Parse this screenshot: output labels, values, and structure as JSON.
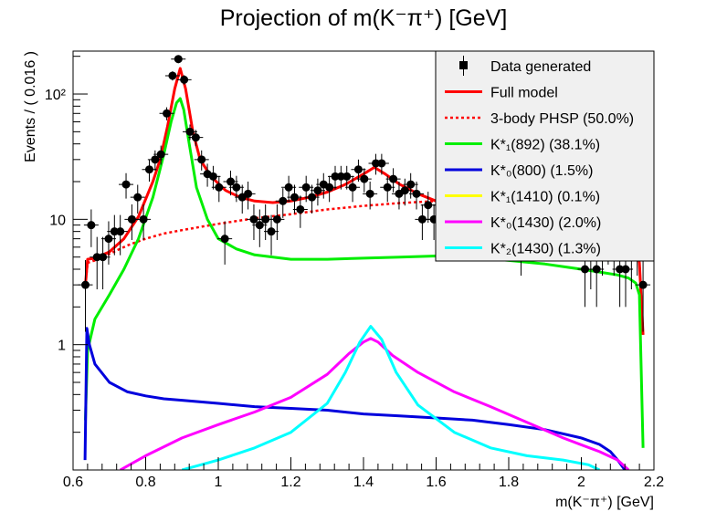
{
  "chart_data": {
    "type": "line",
    "title": "Projection of m(K⁻π⁺) [GeV]",
    "xlabel": "m(K⁻π⁺) [GeV]",
    "ylabel": "Events / ( 0.016 )",
    "xlim": [
      0.6,
      2.2
    ],
    "ylim": [
      0.1,
      220
    ],
    "yscale": "log",
    "grid": false,
    "legend_position": "top-right",
    "x_ticks": [
      "0.6",
      "0.8",
      "1",
      "1.2",
      "1.4",
      "1.6",
      "1.8",
      "2",
      "2.2"
    ],
    "y_ticks": [
      {
        "value": 1,
        "label": "1"
      },
      {
        "value": 10,
        "label": "10"
      },
      {
        "value": 100,
        "label": "10²"
      }
    ],
    "data_points": {
      "name": "Data generated",
      "x": [
        0.634,
        0.65,
        0.666,
        0.682,
        0.698,
        0.714,
        0.73,
        0.746,
        0.762,
        0.778,
        0.794,
        0.81,
        0.826,
        0.842,
        0.858,
        0.874,
        0.89,
        0.906,
        0.922,
        0.938,
        0.954,
        0.97,
        0.986,
        1.002,
        1.018,
        1.034,
        1.05,
        1.066,
        1.082,
        1.098,
        1.114,
        1.13,
        1.146,
        1.162,
        1.178,
        1.194,
        1.21,
        1.226,
        1.242,
        1.258,
        1.274,
        1.29,
        1.306,
        1.322,
        1.338,
        1.354,
        1.37,
        1.386,
        1.402,
        1.418,
        1.434,
        1.45,
        1.466,
        1.482,
        1.498,
        1.514,
        1.53,
        1.546,
        1.562,
        1.578,
        1.594,
        1.61,
        1.626,
        1.642,
        1.658,
        1.674,
        1.69,
        1.706,
        1.722,
        1.738,
        1.754,
        1.77,
        1.786,
        1.802,
        1.818,
        1.834,
        1.85,
        1.866,
        1.882,
        1.898,
        1.914,
        1.93,
        1.946,
        1.962,
        1.978,
        1.994,
        2.01,
        2.026,
        2.042,
        2.058,
        2.074,
        2.09,
        2.106,
        2.122,
        2.138,
        2.154,
        2.17
      ],
      "y": [
        3,
        9,
        5,
        5,
        7,
        8,
        8,
        19,
        10,
        15,
        10,
        25,
        30,
        33,
        70,
        140,
        190,
        130,
        50,
        45,
        30,
        23,
        22,
        18,
        7,
        20,
        18,
        15,
        16,
        10,
        9,
        10,
        8,
        10,
        14,
        18,
        15,
        12,
        18,
        15,
        17,
        19,
        18,
        22,
        22,
        22,
        18,
        25,
        21,
        16,
        28,
        28,
        18,
        21,
        16,
        17,
        19,
        16,
        10,
        13,
        10,
        13,
        10,
        11,
        9,
        12,
        12,
        8,
        11,
        13,
        8,
        9,
        10,
        13,
        10,
        6,
        9,
        8,
        11,
        12,
        13,
        10,
        9,
        11,
        13,
        9,
        4,
        5,
        4,
        6,
        7,
        6,
        4,
        4,
        5,
        6,
        3
      ]
    },
    "series": [
      {
        "name": "Full model",
        "color": "#ff0000",
        "dash": "solid",
        "x": [
          0.634,
          0.64,
          0.66,
          0.7,
          0.74,
          0.78,
          0.82,
          0.84,
          0.86,
          0.88,
          0.895,
          0.91,
          0.93,
          0.95,
          0.98,
          1.02,
          1.06,
          1.1,
          1.15,
          1.2,
          1.25,
          1.3,
          1.35,
          1.4,
          1.43,
          1.46,
          1.5,
          1.55,
          1.6,
          1.65,
          1.7,
          1.75,
          1.8,
          1.85,
          1.9,
          1.95,
          2.0,
          2.05,
          2.1,
          2.13,
          2.15,
          2.16,
          2.17
        ],
        "y": [
          3.0,
          4.8,
          4.9,
          5.5,
          7.0,
          10.5,
          20,
          30,
          55,
          110,
          160,
          110,
          50,
          30,
          22,
          17,
          15,
          14,
          13.6,
          14,
          15,
          16.5,
          19,
          23,
          26,
          23,
          19,
          16,
          14,
          13,
          12.5,
          12,
          11.5,
          11,
          10.8,
          10.5,
          10.2,
          9.8,
          9.0,
          8.0,
          6.5,
          4.5,
          1.2
        ]
      },
      {
        "name": "3-body PHSP (50.0%)",
        "color": "#ff0000",
        "dash": "dotted",
        "x": [
          0.634,
          0.64,
          0.66,
          0.7,
          0.75,
          0.8,
          0.85,
          0.9,
          0.95,
          1.0,
          1.1,
          1.2,
          1.3,
          1.4,
          1.5,
          1.6,
          1.7,
          1.8,
          1.9,
          2.0,
          2.05,
          2.1,
          2.13,
          2.15,
          2.16,
          2.17
        ],
        "y": [
          3.0,
          4.5,
          4.7,
          5.3,
          6.2,
          7.0,
          7.7,
          8.2,
          8.7,
          9.2,
          10.2,
          11.0,
          12.0,
          12.8,
          13.5,
          14.0,
          13.8,
          13.0,
          12.2,
          11.0,
          10.0,
          9.0,
          8.0,
          6.5,
          4.5,
          1.2
        ]
      },
      {
        "name": "K*₁(892) (38.1%)",
        "color": "#00ee00",
        "dash": "solid",
        "x": [
          0.634,
          0.64,
          0.66,
          0.7,
          0.74,
          0.78,
          0.82,
          0.85,
          0.87,
          0.885,
          0.895,
          0.905,
          0.92,
          0.94,
          0.97,
          1.0,
          1.05,
          1.1,
          1.2,
          1.3,
          1.4,
          1.5,
          1.6,
          1.7,
          1.8,
          1.9,
          2.0,
          2.05,
          2.1,
          2.13,
          2.15,
          2.16,
          2.17
        ],
        "y": [
          0.25,
          0.9,
          1.6,
          2.5,
          4.0,
          7.0,
          15,
          33,
          60,
          85,
          92,
          75,
          40,
          18,
          10,
          7.0,
          5.8,
          5.2,
          4.8,
          4.8,
          4.9,
          5.0,
          5.1,
          5.0,
          4.7,
          4.4,
          4.0,
          3.8,
          3.6,
          3.4,
          3.1,
          2.5,
          0.15
        ]
      },
      {
        "name": "K*₀(800) (1.5%)",
        "color": "#0000dd",
        "dash": "solid",
        "x": [
          0.633,
          0.638,
          0.645,
          0.66,
          0.7,
          0.75,
          0.8,
          0.85,
          0.9,
          1.0,
          1.1,
          1.2,
          1.3,
          1.4,
          1.5,
          1.6,
          1.7,
          1.8,
          1.9,
          2.0,
          2.05,
          2.08,
          2.1,
          2.12,
          2.13
        ],
        "y": [
          0.12,
          1.35,
          1.0,
          0.7,
          0.5,
          0.42,
          0.39,
          0.37,
          0.36,
          0.34,
          0.32,
          0.31,
          0.3,
          0.28,
          0.27,
          0.26,
          0.25,
          0.23,
          0.21,
          0.18,
          0.16,
          0.14,
          0.12,
          0.1,
          0.08
        ]
      },
      {
        "name": "K*₁(1410) (0.1%)",
        "color": "#ffff00",
        "dash": "solid",
        "x": [],
        "y": []
      },
      {
        "name": "K*₀(1430) (2.0%)",
        "color": "#ff00ff",
        "dash": "solid",
        "x": [
          0.73,
          0.8,
          0.9,
          1.0,
          1.1,
          1.2,
          1.3,
          1.36,
          1.4,
          1.42,
          1.44,
          1.48,
          1.55,
          1.65,
          1.75,
          1.85,
          1.95,
          2.05,
          2.1,
          2.13
        ],
        "y": [
          0.1,
          0.13,
          0.18,
          0.23,
          0.29,
          0.38,
          0.58,
          0.85,
          1.05,
          1.12,
          1.05,
          0.82,
          0.6,
          0.42,
          0.32,
          0.24,
          0.18,
          0.14,
          0.12,
          0.1
        ]
      },
      {
        "name": "K*₂(1430) (1.3%)",
        "color": "#00ffff",
        "dash": "solid",
        "x": [
          0.9,
          1.0,
          1.1,
          1.2,
          1.3,
          1.35,
          1.39,
          1.42,
          1.45,
          1.49,
          1.55,
          1.65,
          1.75,
          1.85,
          1.95,
          2.02,
          2.05
        ],
        "y": [
          0.1,
          0.12,
          0.15,
          0.2,
          0.34,
          0.6,
          1.05,
          1.4,
          1.1,
          0.6,
          0.33,
          0.2,
          0.15,
          0.13,
          0.12,
          0.11,
          0.1
        ]
      }
    ]
  }
}
